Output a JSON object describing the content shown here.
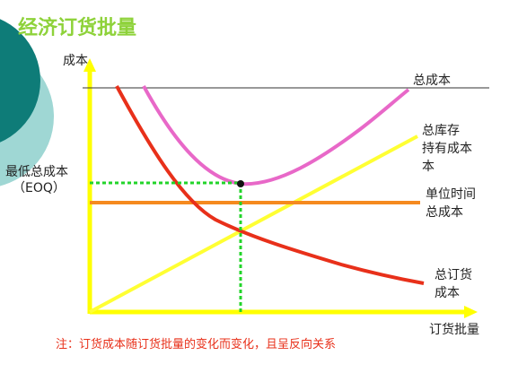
{
  "title": "经济订货批量",
  "y_axis_label": "成本",
  "x_axis_label": "订货批量",
  "eoq_label_line1": "最低总成本",
  "eoq_label_line2": "（EOQ）",
  "curves": {
    "total_cost": "总成本",
    "holding_cost_line1": "总库存",
    "holding_cost_line2": "持有成本",
    "holding_cost_line3": "本",
    "unit_cost_line1": "单位时间",
    "unit_cost_line2": "总成本",
    "ordering_cost_line1": "总订货",
    "ordering_cost_line2": "成本"
  },
  "note": "注：订货成本随订货批量的变化而变化，且呈反向关系",
  "colors": {
    "title": "#8ED23A",
    "axis": "#FFFF00",
    "total_cost": "#E868C8",
    "holding_cost": "#FFFF33",
    "ordering_cost": "#E8301A",
    "unit_cost": "#F58A1F",
    "eoq_guides": "#22D42A",
    "note": "#E8301A",
    "deco_dark": "#0E7C78",
    "deco_light": "#9FD7D4"
  }
}
